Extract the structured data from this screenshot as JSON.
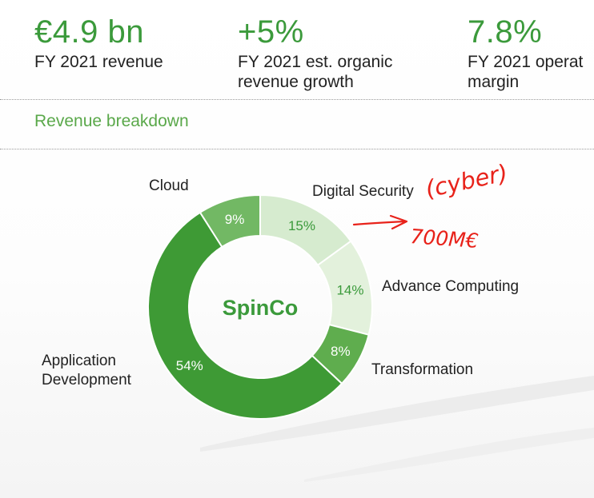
{
  "kpis": [
    {
      "value": "€4.9 bn",
      "label": "FY 2021 revenue"
    },
    {
      "value": "+5%",
      "label": "FY 2021 est. organic\nrevenue growth"
    },
    {
      "value": "7.8%",
      "label": "FY 2021 operat\nmargin"
    }
  ],
  "section_title": "Revenue breakdown",
  "chart_data": {
    "type": "pie",
    "center_label": "SpinCo",
    "slices": [
      {
        "label": "Digital Security",
        "value": 15,
        "value_text": "15%",
        "color": "#d6ebcf",
        "text_color": "#3b9a3b"
      },
      {
        "label": "Advance Computing",
        "value": 14,
        "value_text": "14%",
        "color": "#e3f1dc",
        "text_color": "#3b9a3b"
      },
      {
        "label": "Transformation",
        "value": 8,
        "value_text": "8%",
        "color": "#5fad4e",
        "text_color": "#ffffff"
      },
      {
        "label": "Application\nDevelopment",
        "value": 54,
        "value_text": "54%",
        "color": "#3e9a35",
        "text_color": "#ffffff"
      },
      {
        "label": "Cloud",
        "value": 9,
        "value_text": "9%",
        "color": "#72b864",
        "text_color": "#ffffff"
      }
    ],
    "label_color": "#222222",
    "center_label_color": "#3b9a3b"
  },
  "annotations": {
    "text_1": "(cyber)",
    "text_2": "700M€",
    "color": "#e8221a"
  }
}
